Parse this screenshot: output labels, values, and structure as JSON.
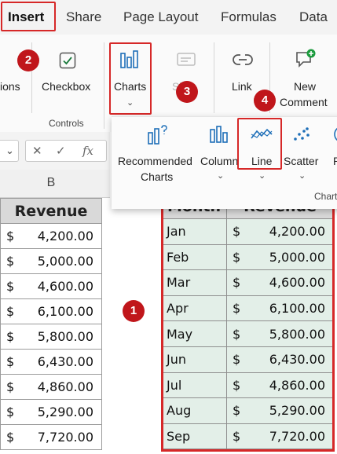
{
  "tabs": [
    {
      "label": "Insert",
      "active": true
    },
    {
      "label": "Share"
    },
    {
      "label": "Page Layout"
    },
    {
      "label": "Formulas"
    },
    {
      "label": "Data"
    }
  ],
  "ribbon": {
    "partial_label": "ions",
    "checkbox_label": "Checkbox",
    "controls_group": "Controls",
    "charts_label": "Charts",
    "disabled_label": "Sh  r",
    "link_label": "Link",
    "new_comment_line1": "New",
    "new_comment_line2": "Comment"
  },
  "formula_bar": {
    "fx": "fx"
  },
  "chart_menu": {
    "recommended_line1": "Recommended",
    "recommended_line2": "Charts",
    "column": "Column",
    "line": "Line",
    "scatter": "Scatter",
    "partial": "P",
    "group_partial": "Chart"
  },
  "steps": [
    "1",
    "2",
    "3",
    "4"
  ],
  "grid": {
    "column_letter": "B",
    "left_header": "Revenue",
    "left_rows": [
      {
        "cur": "$",
        "amount": "4,200.00"
      },
      {
        "cur": "$",
        "amount": "5,000.00"
      },
      {
        "cur": "$",
        "amount": "4,600.00"
      },
      {
        "cur": "$",
        "amount": "6,100.00"
      },
      {
        "cur": "$",
        "amount": "5,800.00"
      },
      {
        "cur": "$",
        "amount": "6,430.00"
      },
      {
        "cur": "$",
        "amount": "4,860.00"
      },
      {
        "cur": "$",
        "amount": "5,290.00"
      },
      {
        "cur": "$",
        "amount": "7,720.00"
      }
    ],
    "right_header_month": "Month",
    "right_header_revenue": "Revenue",
    "right_rows": [
      {
        "month": "Jan",
        "cur": "$",
        "amount": "4,200.00"
      },
      {
        "month": "Feb",
        "cur": "$",
        "amount": "5,000.00"
      },
      {
        "month": "Mar",
        "cur": "$",
        "amount": "4,600.00"
      },
      {
        "month": "Apr",
        "cur": "$",
        "amount": "6,100.00"
      },
      {
        "month": "May",
        "cur": "$",
        "amount": "5,800.00"
      },
      {
        "month": "Jun",
        "cur": "$",
        "amount": "6,430.00"
      },
      {
        "month": "Jul",
        "cur": "$",
        "amount": "4,860.00"
      },
      {
        "month": "Aug",
        "cur": "$",
        "amount": "5,290.00"
      },
      {
        "month": "Sep",
        "cur": "$",
        "amount": "7,720.00"
      }
    ]
  },
  "colors": {
    "accent": "#d62828",
    "marker": "#c0161b",
    "icon_blue": "#1e6fb8",
    "selection_fill": "#e3efe8"
  }
}
